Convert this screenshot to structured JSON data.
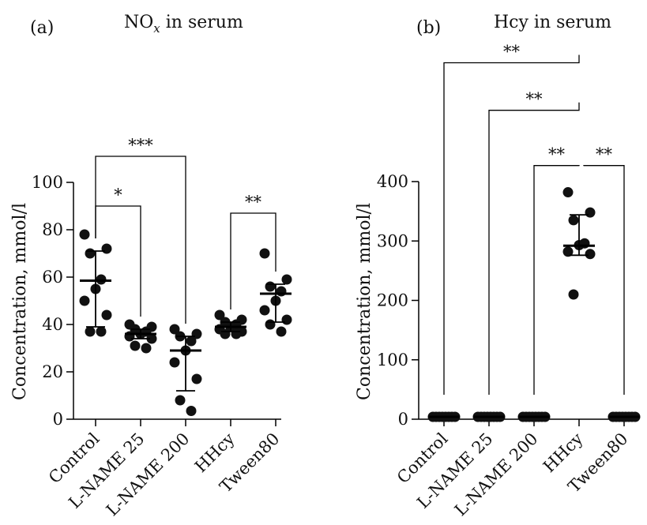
{
  "chart_data": [
    {
      "type": "scatter",
      "panel_label": "(a)",
      "title_main": "NO",
      "title_sub": "x",
      "title_rest": " in serum",
      "ylabel": "Concentration, mmol/l",
      "ylim": [
        0,
        100
      ],
      "yticks": [
        "0",
        "20",
        "40",
        "60",
        "80",
        "100"
      ],
      "categories": [
        "Control",
        "L-NAME 25",
        "L-NAME 200",
        "HHcy",
        "Tween80"
      ],
      "points": [
        [
          78,
          72,
          70,
          59,
          55,
          50,
          44,
          37,
          37
        ],
        [
          40,
          39,
          38,
          37,
          36,
          35,
          34,
          31,
          30
        ],
        [
          38,
          36,
          35,
          33,
          29,
          24,
          17,
          8,
          3.5
        ],
        [
          44,
          42,
          41,
          40,
          39,
          38,
          37,
          36,
          36
        ],
        [
          70,
          59,
          56,
          54,
          50,
          46,
          42,
          40,
          37
        ]
      ],
      "summary": [
        {
          "mid": 58.5,
          "low": 39,
          "high": 71
        },
        {
          "mid": 36,
          "low": 34,
          "high": 38
        },
        {
          "mid": 29,
          "low": 12,
          "high": 35
        },
        {
          "mid": 39,
          "low": 37,
          "high": 41
        },
        {
          "mid": 53,
          "low": 41,
          "high": 57
        }
      ],
      "significance": [
        {
          "from": 0,
          "to": 1,
          "label": "*",
          "y": 90
        },
        {
          "from": 0,
          "to": 2,
          "label": "***",
          "y": 111
        },
        {
          "from": 3,
          "to": 4,
          "label": "**",
          "y": 87
        }
      ]
    },
    {
      "type": "scatter",
      "panel_label": "(b)",
      "title_main": "Hcy in serum",
      "title_sub": "",
      "title_rest": "",
      "ylabel": "Concentration, mmol/l",
      "ylim": [
        0,
        400
      ],
      "yticks": [
        "0",
        "100",
        "200",
        "300",
        "400"
      ],
      "categories": [
        "Control",
        "L-NAME 25",
        "L-NAME 200",
        "HHcy",
        "Tween80"
      ],
      "points": [
        [
          4,
          4,
          4,
          4,
          4,
          4,
          4,
          4
        ],
        [
          4,
          4,
          4,
          4,
          4,
          4,
          4,
          4
        ],
        [
          4,
          4,
          4,
          4,
          4,
          4,
          4,
          4
        ],
        [
          382,
          348,
          335,
          296,
          293,
          282,
          278,
          210
        ],
        [
          4,
          4,
          4,
          4,
          4,
          4,
          4,
          4
        ]
      ],
      "summary": [
        {
          "mid": 4,
          "low": 4,
          "high": 4
        },
        {
          "mid": 4,
          "low": 4,
          "high": 4
        },
        {
          "mid": 4,
          "low": 4,
          "high": 4
        },
        {
          "mid": 292,
          "low": 276,
          "high": 344
        },
        {
          "mid": 4,
          "low": 4,
          "high": 4
        }
      ],
      "significance": [
        {
          "from": 0,
          "to": 3,
          "label": "**",
          "y": 600
        },
        {
          "from": 1,
          "to": 3,
          "label": "**",
          "y": 520
        },
        {
          "from": 2,
          "to": 3,
          "label": "**",
          "y": 427
        },
        {
          "from": 3,
          "to": 4,
          "label": "**",
          "y": 427
        }
      ]
    }
  ]
}
